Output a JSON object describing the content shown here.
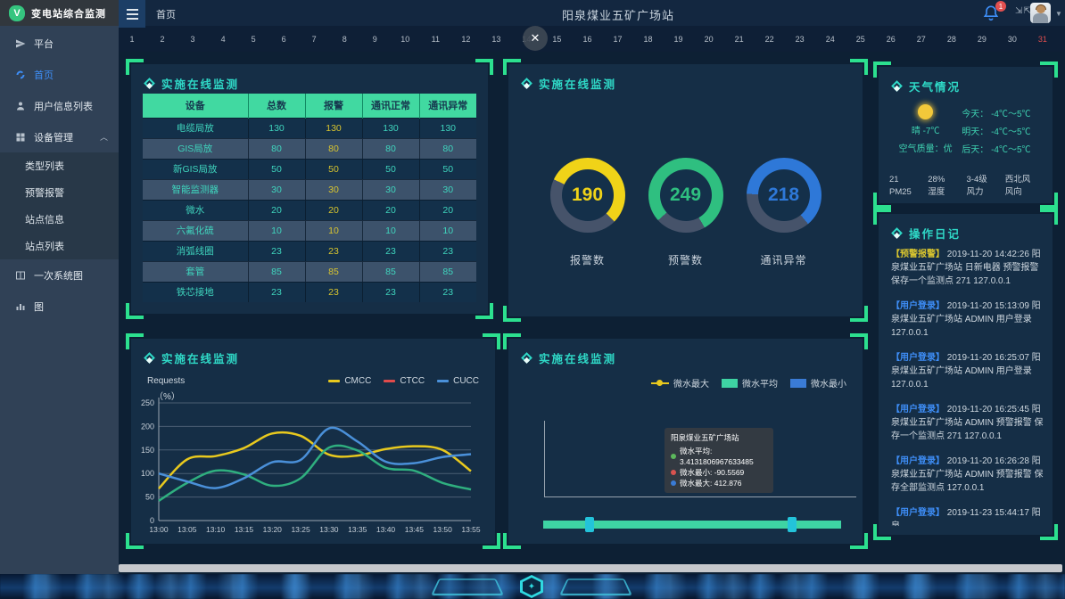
{
  "logo": {
    "letter": "V",
    "text": "变电站综合监测"
  },
  "header": {
    "breadcrumb": "首页",
    "title": "阳泉煤业五矿广场站",
    "bell_badge": "1",
    "fullscreen_glyph": "⇲⇱"
  },
  "sidebar": {
    "items": [
      {
        "id": "platform",
        "label": "平台",
        "icon": "send-icon"
      },
      {
        "id": "home",
        "label": "首页",
        "icon": "home-icon",
        "active": true
      },
      {
        "id": "user-info-list",
        "label": "用户信息列表",
        "icon": "user-icon"
      },
      {
        "id": "device-management",
        "label": "设备管理",
        "icon": "devices-icon",
        "expanded": true,
        "children": [
          {
            "id": "type-list",
            "label": "类型列表"
          },
          {
            "id": "warning-alarm",
            "label": "预警报警"
          },
          {
            "id": "station-info",
            "label": "站点信息"
          },
          {
            "id": "station-list",
            "label": "站点列表"
          }
        ]
      },
      {
        "id": "primary-system-diagram",
        "label": "一次系统图",
        "icon": "diagram-icon"
      },
      {
        "id": "chart",
        "label": "图",
        "icon": "chart-icon"
      }
    ]
  },
  "ruler": {
    "numbers": [
      "1",
      "2",
      "3",
      "4",
      "5",
      "6",
      "7",
      "8",
      "9",
      "10",
      "11",
      "12",
      "13",
      "14",
      "15",
      "16",
      "17",
      "18",
      "19",
      "20",
      "21",
      "22",
      "23",
      "24",
      "25",
      "26",
      "27",
      "28",
      "29",
      "30",
      "31"
    ],
    "highlight": "31"
  },
  "close_button": {
    "symbol": "✕"
  },
  "table_panel": {
    "title": "实施在线监测",
    "columns": [
      "设备",
      "总数",
      "报警",
      "通讯正常",
      "通讯异常"
    ],
    "rows": [
      [
        "电缆局放",
        "130",
        "130",
        "130",
        "130"
      ],
      [
        "GIS局放",
        "80",
        "80",
        "80",
        "80"
      ],
      [
        "新GIS局放",
        "50",
        "50",
        "50",
        "50"
      ],
      [
        "智能监测器",
        "30",
        "30",
        "30",
        "30"
      ],
      [
        "微水",
        "20",
        "20",
        "20",
        "20"
      ],
      [
        "六氟化硫",
        "10",
        "10",
        "10",
        "10"
      ],
      [
        "消弧线圈",
        "23",
        "23",
        "23",
        "23"
      ],
      [
        "套管",
        "85",
        "85",
        "85",
        "85"
      ],
      [
        "铁芯接地",
        "23",
        "23",
        "23",
        "23"
      ]
    ]
  },
  "donut_panel": {
    "title": "实施在线监测"
  },
  "weather_panel": {
    "title": "天气情况",
    "condition_now": "晴  -7℃",
    "air_quality": "空气质量：优",
    "forecast": [
      {
        "day": "今天：",
        "range": "-4℃～5℃"
      },
      {
        "day": "明天：",
        "range": "-4℃～5℃"
      },
      {
        "day": "后天：",
        "range": "-4℃～5℃"
      }
    ],
    "stats": [
      {
        "value": "21",
        "label": "PM25"
      },
      {
        "value": "28%",
        "label": "湿度"
      },
      {
        "value": "3-4级",
        "label": "风力"
      },
      {
        "value": "西北风",
        "label": "风向"
      }
    ]
  },
  "log_panel": {
    "title": "操作日记",
    "entries": [
      {
        "tag": "预警报警",
        "tag_type": "warning",
        "text": "2019-11-20 14:42:26 阳泉煤业五矿广场站 日新电器 预警报警 保存一个监测点  271 127.0.0.1"
      },
      {
        "tag": "用户登录",
        "tag_type": "login",
        "text": "2019-11-20 15:13:09 阳泉煤业五矿广场站 ADMIN 用户登录 127.0.0.1"
      },
      {
        "tag": "用户登录",
        "tag_type": "login",
        "text": "2019-11-20 16:25:07 阳泉煤业五矿广场站 ADMIN 用户登录 127.0.0.1"
      },
      {
        "tag": "用户登录",
        "tag_type": "login",
        "text": "2019-11-20 16:25:45 阳泉煤业五矿广场站 ADMIN 预警报警 保存一个监测点  271 127.0.0.1"
      },
      {
        "tag": "用户登录",
        "tag_type": "login",
        "text": "2019-11-20 16:26:28 阳泉煤业五矿广场站 ADMIN 预警报警 保存全部监测点  127.0.0.1"
      },
      {
        "tag": "用户登录",
        "tag_type": "login",
        "text": "2019-11-23 15:44:17 阳泉"
      }
    ]
  },
  "line_panel": {
    "title": "实施在线监测"
  },
  "micro_panel": {
    "title": "实施在线监测"
  },
  "chart_data": [
    {
      "type": "pie",
      "subtype": "donut-gauges",
      "items": [
        {
          "label": "报警数",
          "value": 190,
          "color": "#f0d318",
          "start_deg": 295,
          "sweep_deg": 200
        },
        {
          "label": "预警数",
          "value": 249,
          "color": "#2fbf80",
          "start_deg": 228,
          "sweep_deg": 282
        },
        {
          "label": "通讯异常",
          "value": 218,
          "color": "#2e78d8",
          "start_deg": 272,
          "sweep_deg": 228
        }
      ],
      "ring_bg_color": "#46536a"
    },
    {
      "type": "line",
      "title": "实施在线监测",
      "ylabel": "Requests",
      "ylabel_unit": "（%）",
      "x": [
        "13:00",
        "13:05",
        "13:10",
        "13:15",
        "13:20",
        "13:25",
        "13:30",
        "13:35",
        "13:40",
        "13:45",
        "13:50",
        "13:55"
      ],
      "ylim": [
        0,
        250
      ],
      "yticks": [
        0,
        50,
        100,
        150,
        200,
        250
      ],
      "grid": true,
      "legend_position": "top-right",
      "legend": [
        {
          "name": "CMCC",
          "color": "#e8c91e"
        },
        {
          "name": "CTCC",
          "color": "#e14b4b"
        },
        {
          "name": "CUCC",
          "color": "#4a90d9"
        }
      ],
      "series": [
        {
          "name": "CMCC",
          "line_color": "#e8c91e",
          "values": [
            68,
            130,
            137,
            154,
            185,
            180,
            140,
            138,
            152,
            158,
            150,
            105
          ]
        },
        {
          "name": "CTCC",
          "line_color": "#2faf7f",
          "values": [
            42,
            80,
            106,
            98,
            74,
            90,
            155,
            149,
            112,
            106,
            80,
            66
          ]
        },
        {
          "name": "CUCC",
          "line_color": "#4a90d9",
          "values": [
            100,
            83,
            69,
            90,
            124,
            129,
            196,
            168,
            125,
            122,
            135,
            141
          ]
        }
      ]
    },
    {
      "type": "line",
      "title": "实施在线监测",
      "legend": [
        {
          "name": "微水最大",
          "color": "#e8c91e",
          "marker": "line-dot"
        },
        {
          "name": "微水平均",
          "color": "#3ed3a3",
          "marker": "rect"
        },
        {
          "name": "微水最小",
          "color": "#3a7bd5",
          "marker": "rect"
        }
      ],
      "tooltip": {
        "title": "阳泉煤业五矿广场站",
        "rows": [
          {
            "label": "微水平均",
            "value": "3.4131806967633485",
            "dot_color": "#5cb85c"
          },
          {
            "label": "微水最小",
            "value": "-90.5569",
            "dot_color": "#d9534f"
          },
          {
            "label": "微水最大",
            "value": "412.876",
            "dot_color": "#3a7bd5"
          }
        ]
      },
      "datazoom": {
        "track_color": "#3ed3a3",
        "handle_color": "#23c3da",
        "handle_positions_pct": [
          14,
          82
        ]
      }
    }
  ]
}
